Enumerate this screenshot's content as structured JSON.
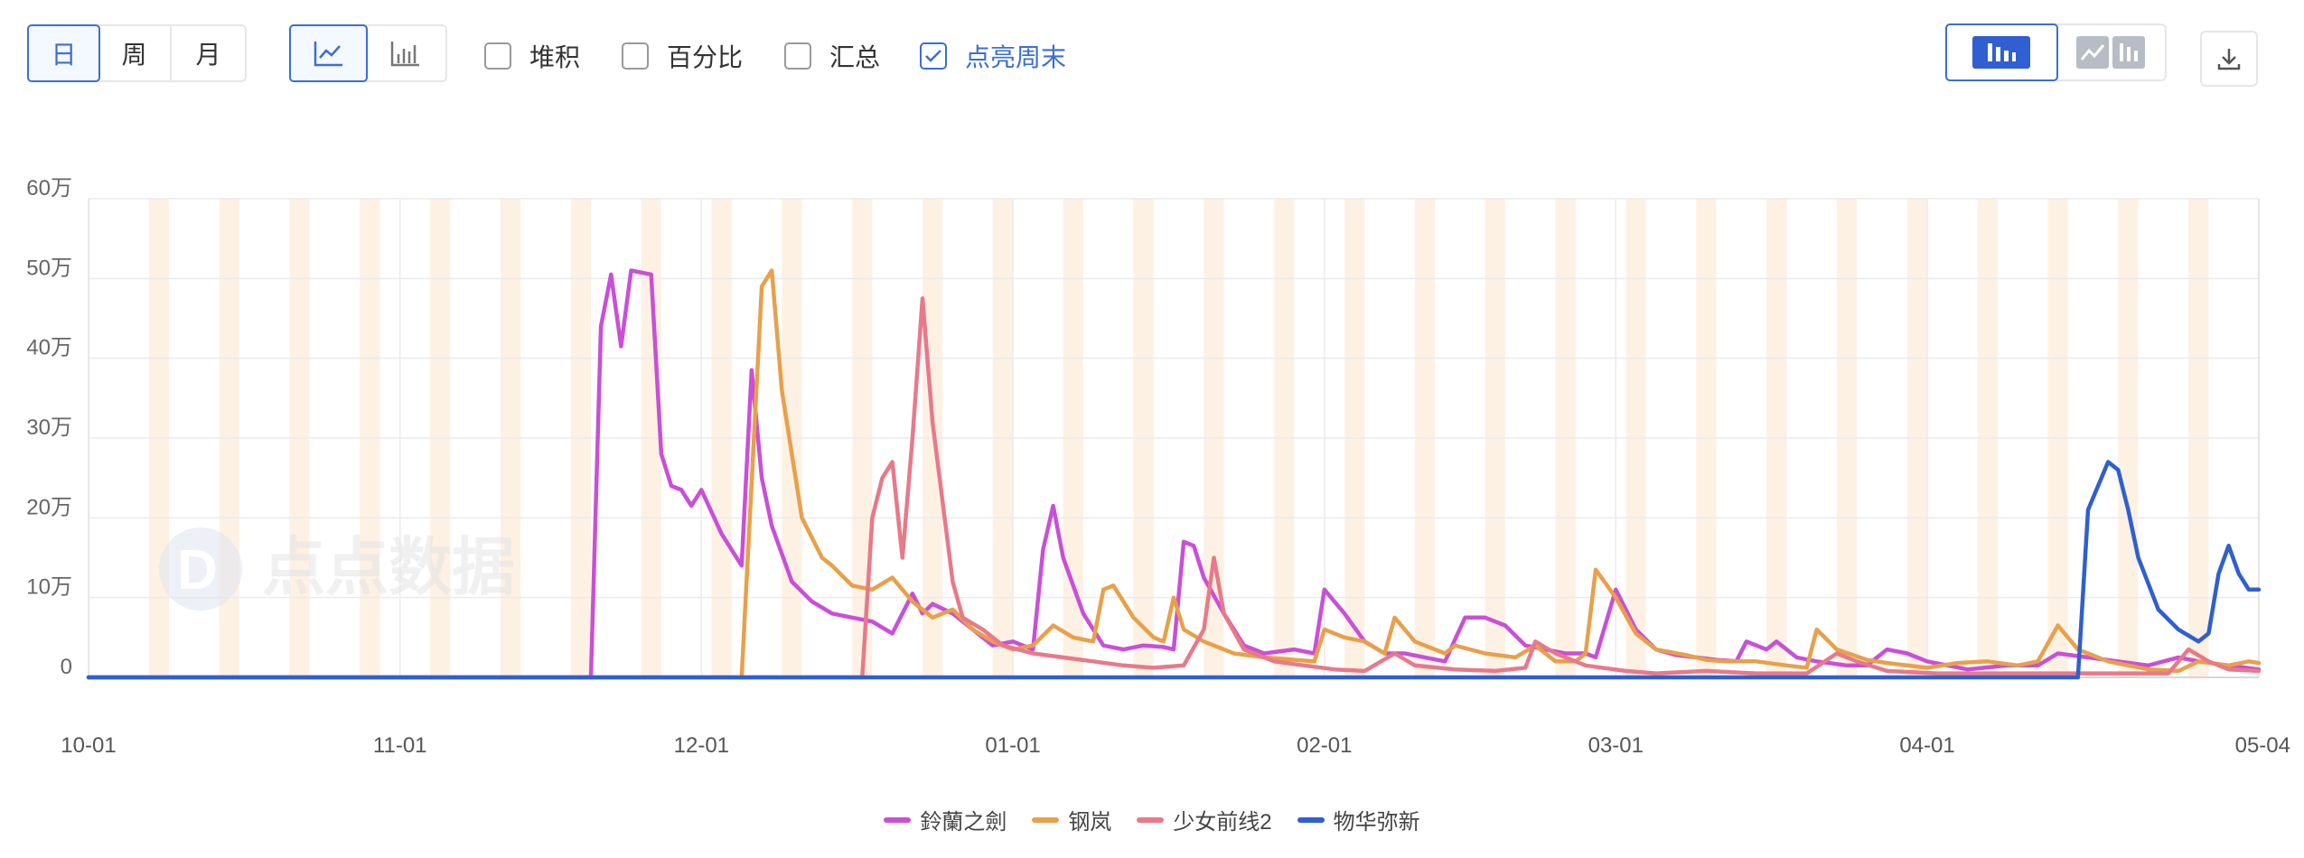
{
  "toolbar": {
    "period_tabs": [
      {
        "label": "日",
        "active": true
      },
      {
        "label": "周",
        "active": false
      },
      {
        "label": "月",
        "active": false
      }
    ],
    "chart_type_icons": [
      "line-chart-icon",
      "bar-chart-icon"
    ],
    "checkboxes": [
      {
        "label": "堆积",
        "checked": false
      },
      {
        "label": "百分比",
        "checked": false
      },
      {
        "label": "汇总",
        "checked": false
      },
      {
        "label": "点亮周末",
        "checked": true
      }
    ],
    "view_toggle_icons": [
      "bar-view-icon",
      "line-bar-view-icon"
    ],
    "download_icon": "download-icon"
  },
  "watermark": "点点数据",
  "colors": {
    "accent": "#3a6fd1",
    "weekend_band": "#fdf1e4"
  },
  "chart_data": {
    "type": "line",
    "x_ticks": [
      "10-01",
      "11-01",
      "12-01",
      "01-01",
      "02-01",
      "03-01",
      "04-01",
      "05-04"
    ],
    "y_ticks": [
      "0",
      "10万",
      "20万",
      "30万",
      "40万",
      "50万",
      "60万"
    ],
    "ylim": [
      0,
      600000
    ],
    "grid": true,
    "legend_position": "bottom-center",
    "highlight_weekends": true,
    "series": [
      {
        "name": "鈴蘭之劍",
        "color": "#c94fd8",
        "points": [
          [
            "10-01",
            0
          ],
          [
            "11-20",
            0
          ],
          [
            "11-21",
            440000
          ],
          [
            "11-22",
            505000
          ],
          [
            "11-23",
            415000
          ],
          [
            "11-24",
            510000
          ],
          [
            "11-26",
            505000
          ],
          [
            "11-27",
            280000
          ],
          [
            "11-28",
            240000
          ],
          [
            "11-29",
            235000
          ],
          [
            "11-30",
            215000
          ],
          [
            "12-01",
            235000
          ],
          [
            "12-03",
            180000
          ],
          [
            "12-05",
            140000
          ],
          [
            "12-06",
            385000
          ],
          [
            "12-07",
            250000
          ],
          [
            "12-08",
            190000
          ],
          [
            "12-10",
            120000
          ],
          [
            "12-12",
            95000
          ],
          [
            "12-14",
            80000
          ],
          [
            "12-16",
            75000
          ],
          [
            "12-18",
            70000
          ],
          [
            "12-20",
            55000
          ],
          [
            "12-22",
            105000
          ],
          [
            "12-23",
            80000
          ],
          [
            "12-24",
            92000
          ],
          [
            "12-26",
            80000
          ],
          [
            "12-28",
            60000
          ],
          [
            "12-30",
            40000
          ],
          [
            "01-01",
            45000
          ],
          [
            "01-03",
            35000
          ],
          [
            "01-04",
            160000
          ],
          [
            "01-05",
            215000
          ],
          [
            "01-06",
            150000
          ],
          [
            "01-08",
            80000
          ],
          [
            "01-10",
            40000
          ],
          [
            "01-12",
            35000
          ],
          [
            "01-14",
            40000
          ],
          [
            "01-16",
            38000
          ],
          [
            "01-17",
            35000
          ],
          [
            "01-18",
            170000
          ],
          [
            "01-19",
            165000
          ],
          [
            "01-20",
            125000
          ],
          [
            "01-22",
            80000
          ],
          [
            "01-24",
            40000
          ],
          [
            "01-26",
            30000
          ],
          [
            "01-29",
            35000
          ],
          [
            "01-31",
            30000
          ],
          [
            "02-01",
            110000
          ],
          [
            "02-03",
            80000
          ],
          [
            "02-05",
            45000
          ],
          [
            "02-07",
            30000
          ],
          [
            "02-09",
            30000
          ],
          [
            "02-11",
            25000
          ],
          [
            "02-13",
            20000
          ],
          [
            "02-15",
            75000
          ],
          [
            "02-17",
            75000
          ],
          [
            "02-19",
            65000
          ],
          [
            "02-21",
            40000
          ],
          [
            "02-23",
            35000
          ],
          [
            "02-25",
            30000
          ],
          [
            "02-27",
            30000
          ],
          [
            "02-28",
            25000
          ],
          [
            "03-01",
            110000
          ],
          [
            "03-03",
            60000
          ],
          [
            "03-05",
            35000
          ],
          [
            "03-07",
            28000
          ],
          [
            "03-09",
            25000
          ],
          [
            "03-11",
            22000
          ],
          [
            "03-13",
            20000
          ],
          [
            "03-14",
            45000
          ],
          [
            "03-16",
            35000
          ],
          [
            "03-17",
            45000
          ],
          [
            "03-19",
            25000
          ],
          [
            "03-21",
            20000
          ],
          [
            "03-24",
            15000
          ],
          [
            "03-26",
            15000
          ],
          [
            "03-28",
            35000
          ],
          [
            "03-30",
            30000
          ],
          [
            "04-01",
            20000
          ],
          [
            "04-05",
            10000
          ],
          [
            "04-09",
            15000
          ],
          [
            "04-12",
            15000
          ],
          [
            "04-14",
            30000
          ],
          [
            "04-17",
            25000
          ],
          [
            "04-20",
            20000
          ],
          [
            "04-23",
            15000
          ],
          [
            "04-26",
            25000
          ],
          [
            "04-28",
            20000
          ],
          [
            "05-01",
            15000
          ],
          [
            "05-04",
            10000
          ]
        ]
      },
      {
        "name": "钢岚",
        "color": "#e8a04a",
        "points": [
          [
            "10-01",
            0
          ],
          [
            "12-05",
            0
          ],
          [
            "12-07",
            490000
          ],
          [
            "12-08",
            510000
          ],
          [
            "12-09",
            360000
          ],
          [
            "12-10",
            280000
          ],
          [
            "12-11",
            200000
          ],
          [
            "12-13",
            150000
          ],
          [
            "12-14",
            140000
          ],
          [
            "12-16",
            115000
          ],
          [
            "12-18",
            110000
          ],
          [
            "12-20",
            125000
          ],
          [
            "12-22",
            95000
          ],
          [
            "12-24",
            75000
          ],
          [
            "12-26",
            85000
          ],
          [
            "12-28",
            60000
          ],
          [
            "12-30",
            45000
          ],
          [
            "01-01",
            35000
          ],
          [
            "01-03",
            40000
          ],
          [
            "01-05",
            65000
          ],
          [
            "01-07",
            50000
          ],
          [
            "01-09",
            45000
          ],
          [
            "01-10",
            110000
          ],
          [
            "01-11",
            115000
          ],
          [
            "01-13",
            75000
          ],
          [
            "01-15",
            50000
          ],
          [
            "01-16",
            45000
          ],
          [
            "01-17",
            100000
          ],
          [
            "01-18",
            60000
          ],
          [
            "01-20",
            45000
          ],
          [
            "01-23",
            30000
          ],
          [
            "01-26",
            25000
          ],
          [
            "01-29",
            22000
          ],
          [
            "01-31",
            20000
          ],
          [
            "02-01",
            60000
          ],
          [
            "02-03",
            50000
          ],
          [
            "02-05",
            45000
          ],
          [
            "02-07",
            30000
          ],
          [
            "02-08",
            75000
          ],
          [
            "02-10",
            45000
          ],
          [
            "02-13",
            30000
          ],
          [
            "02-14",
            40000
          ],
          [
            "02-17",
            30000
          ],
          [
            "02-20",
            25000
          ],
          [
            "02-22",
            40000
          ],
          [
            "02-24",
            20000
          ],
          [
            "02-26",
            20000
          ],
          [
            "02-27",
            30000
          ],
          [
            "02-28",
            135000
          ],
          [
            "03-01",
            100000
          ],
          [
            "03-03",
            55000
          ],
          [
            "03-05",
            35000
          ],
          [
            "03-08",
            28000
          ],
          [
            "03-10",
            22000
          ],
          [
            "03-12",
            20000
          ],
          [
            "03-15",
            20000
          ],
          [
            "03-18",
            15000
          ],
          [
            "03-20",
            12000
          ],
          [
            "03-21",
            60000
          ],
          [
            "03-23",
            35000
          ],
          [
            "03-26",
            22000
          ],
          [
            "03-28",
            18000
          ],
          [
            "04-01",
            12000
          ],
          [
            "04-04",
            18000
          ],
          [
            "04-07",
            20000
          ],
          [
            "04-10",
            15000
          ],
          [
            "04-12",
            20000
          ],
          [
            "04-14",
            65000
          ],
          [
            "04-16",
            35000
          ],
          [
            "04-19",
            20000
          ],
          [
            "04-23",
            10000
          ],
          [
            "04-26",
            8000
          ],
          [
            "04-28",
            20000
          ],
          [
            "05-01",
            15000
          ],
          [
            "05-03",
            20000
          ],
          [
            "05-04",
            18000
          ]
        ]
      },
      {
        "name": "少女前线2",
        "color": "#e8798a",
        "points": [
          [
            "10-01",
            0
          ],
          [
            "12-17",
            0
          ],
          [
            "12-18",
            200000
          ],
          [
            "12-19",
            250000
          ],
          [
            "12-20",
            270000
          ],
          [
            "12-21",
            150000
          ],
          [
            "12-22",
            300000
          ],
          [
            "12-23",
            475000
          ],
          [
            "12-24",
            320000
          ],
          [
            "12-26",
            120000
          ],
          [
            "12-27",
            75000
          ],
          [
            "12-29",
            60000
          ],
          [
            "12-31",
            40000
          ],
          [
            "01-03",
            30000
          ],
          [
            "01-06",
            25000
          ],
          [
            "01-09",
            20000
          ],
          [
            "01-12",
            15000
          ],
          [
            "01-15",
            12000
          ],
          [
            "01-18",
            15000
          ],
          [
            "01-20",
            60000
          ],
          [
            "01-21",
            150000
          ],
          [
            "01-22",
            80000
          ],
          [
            "01-24",
            35000
          ],
          [
            "01-27",
            20000
          ],
          [
            "01-30",
            15000
          ],
          [
            "02-02",
            10000
          ],
          [
            "02-05",
            8000
          ],
          [
            "02-08",
            30000
          ],
          [
            "02-10",
            15000
          ],
          [
            "02-14",
            10000
          ],
          [
            "02-18",
            8000
          ],
          [
            "02-21",
            12000
          ],
          [
            "02-22",
            45000
          ],
          [
            "02-24",
            30000
          ],
          [
            "02-27",
            15000
          ],
          [
            "03-02",
            8000
          ],
          [
            "03-05",
            5000
          ],
          [
            "03-10",
            8000
          ],
          [
            "03-15",
            5000
          ],
          [
            "03-20",
            5000
          ],
          [
            "03-23",
            30000
          ],
          [
            "03-25",
            20000
          ],
          [
            "03-28",
            8000
          ],
          [
            "04-02",
            5000
          ],
          [
            "04-08",
            5000
          ],
          [
            "04-12",
            5000
          ],
          [
            "04-15",
            5000
          ],
          [
            "04-20",
            5000
          ],
          [
            "04-25",
            5000
          ],
          [
            "04-27",
            35000
          ],
          [
            "04-29",
            20000
          ],
          [
            "05-01",
            10000
          ],
          [
            "05-04",
            8000
          ]
        ]
      },
      {
        "name": "物华弥新",
        "color": "#2f5fd0",
        "points": [
          [
            "10-01",
            0
          ],
          [
            "04-16",
            0
          ],
          [
            "04-17",
            210000
          ],
          [
            "04-18",
            240000
          ],
          [
            "04-19",
            270000
          ],
          [
            "04-20",
            260000
          ],
          [
            "04-21",
            210000
          ],
          [
            "04-22",
            150000
          ],
          [
            "04-24",
            85000
          ],
          [
            "04-26",
            60000
          ],
          [
            "04-28",
            45000
          ],
          [
            "04-29",
            55000
          ],
          [
            "04-30",
            130000
          ],
          [
            "05-01",
            165000
          ],
          [
            "05-02",
            130000
          ],
          [
            "05-03",
            110000
          ],
          [
            "05-04",
            110000
          ]
        ]
      }
    ]
  }
}
